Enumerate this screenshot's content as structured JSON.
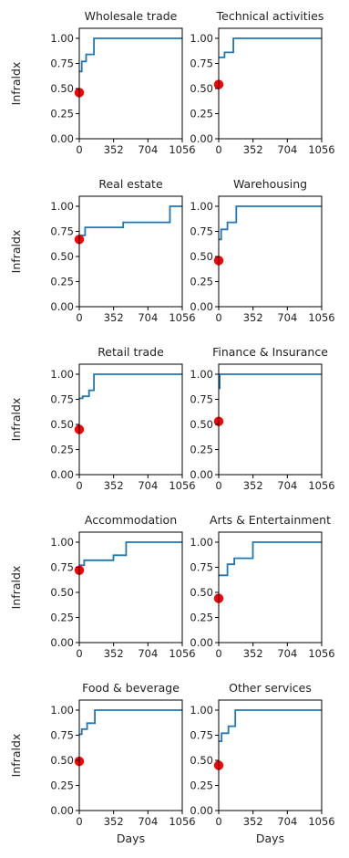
{
  "figure": {
    "ylabel": "Infraldx",
    "xlabel": "Days",
    "line_color": "#1f77b4",
    "marker_color": "#ff0000",
    "x_ticks": [
      0,
      352,
      704,
      1056
    ],
    "y_ticks": [
      "0.00",
      "0.25",
      "0.50",
      "0.75",
      "1.00"
    ]
  },
  "chart_data": [
    {
      "type": "line",
      "title": "Wholesale trade",
      "xlim": [
        0,
        1056
      ],
      "ylim": [
        0,
        1.1
      ],
      "series": [
        {
          "step_x": [
            0,
            25,
            70,
            150,
            1056
          ],
          "step_y": [
            0.67,
            0.77,
            0.84,
            1.0,
            1.0
          ]
        }
      ],
      "marker": {
        "x": 0,
        "y": 0.46
      }
    },
    {
      "type": "line",
      "title": "Technical activities",
      "xlim": [
        0,
        1056
      ],
      "ylim": [
        0,
        1.1
      ],
      "series": [
        {
          "step_x": [
            0,
            60,
            150,
            1056
          ],
          "step_y": [
            0.81,
            0.86,
            1.0,
            1.0
          ]
        }
      ],
      "marker": {
        "x": 0,
        "y": 0.54
      }
    },
    {
      "type": "line",
      "title": "Real estate",
      "xlim": [
        0,
        1056
      ],
      "ylim": [
        0,
        1.1
      ],
      "series": [
        {
          "step_x": [
            0,
            60,
            450,
            930,
            1056
          ],
          "step_y": [
            0.71,
            0.79,
            0.84,
            1.0,
            1.0
          ]
        }
      ],
      "marker": {
        "x": 0,
        "y": 0.67
      }
    },
    {
      "type": "line",
      "title": "Warehousing",
      "xlim": [
        0,
        1056
      ],
      "ylim": [
        0,
        1.1
      ],
      "series": [
        {
          "step_x": [
            0,
            25,
            90,
            180,
            1056
          ],
          "step_y": [
            0.67,
            0.77,
            0.84,
            1.0,
            1.0
          ]
        }
      ],
      "marker": {
        "x": 0,
        "y": 0.46
      }
    },
    {
      "type": "line",
      "title": "Retail trade",
      "xlim": [
        0,
        1056
      ],
      "ylim": [
        0,
        1.1
      ],
      "series": [
        {
          "step_x": [
            0,
            35,
            100,
            150,
            1056
          ],
          "step_y": [
            0.76,
            0.78,
            0.84,
            1.0,
            1.0
          ]
        }
      ],
      "marker": {
        "x": 0,
        "y": 0.45
      }
    },
    {
      "type": "line",
      "title": "Finance & Insurance",
      "xlim": [
        0,
        1056
      ],
      "ylim": [
        0,
        1.1
      ],
      "series": [
        {
          "step_x": [
            0,
            10,
            1056
          ],
          "step_y": [
            0.86,
            1.0,
            1.0
          ]
        }
      ],
      "marker": {
        "x": 0,
        "y": 0.53
      }
    },
    {
      "type": "line",
      "title": "Accommodation",
      "xlim": [
        0,
        1056
      ],
      "ylim": [
        0,
        1.1
      ],
      "series": [
        {
          "step_x": [
            0,
            50,
            350,
            480,
            1056
          ],
          "step_y": [
            0.77,
            0.82,
            0.87,
            1.0,
            1.0
          ]
        }
      ],
      "marker": {
        "x": 0,
        "y": 0.72
      }
    },
    {
      "type": "line",
      "title": "Arts & Entertainment",
      "xlim": [
        0,
        1056
      ],
      "ylim": [
        0,
        1.1
      ],
      "series": [
        {
          "step_x": [
            0,
            90,
            160,
            350,
            1056
          ],
          "step_y": [
            0.67,
            0.78,
            0.84,
            1.0,
            1.0
          ]
        }
      ],
      "marker": {
        "x": 0,
        "y": 0.44
      }
    },
    {
      "type": "line",
      "title": "Food & beverage",
      "xlim": [
        0,
        1056
      ],
      "ylim": [
        0,
        1.1
      ],
      "series": [
        {
          "step_x": [
            0,
            25,
            80,
            160,
            1056
          ],
          "step_y": [
            0.76,
            0.81,
            0.87,
            1.0,
            1.0
          ]
        }
      ],
      "marker": {
        "x": 0,
        "y": 0.49
      }
    },
    {
      "type": "line",
      "title": "Other services",
      "xlim": [
        0,
        1056
      ],
      "ylim": [
        0,
        1.1
      ],
      "series": [
        {
          "step_x": [
            0,
            30,
            100,
            170,
            1056
          ],
          "step_y": [
            0.69,
            0.77,
            0.84,
            1.0,
            1.0
          ]
        }
      ],
      "marker": {
        "x": 0,
        "y": 0.45
      }
    }
  ]
}
